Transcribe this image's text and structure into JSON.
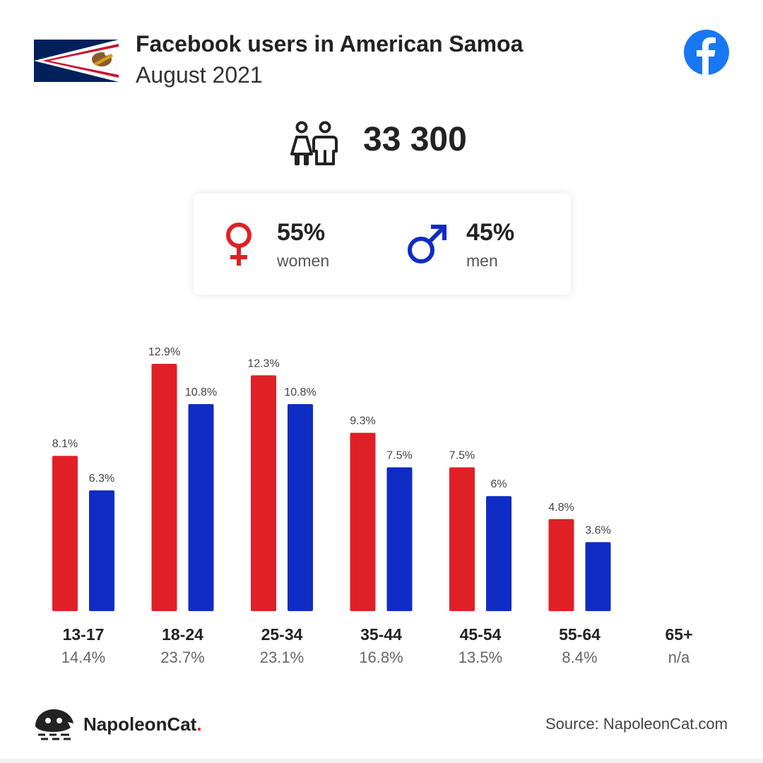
{
  "header": {
    "title": "Facebook users in American Samoa",
    "subtitle": "August 2021"
  },
  "icons": {
    "flag": "american-samoa-flag",
    "platform": "facebook-logo",
    "people": "people-icon",
    "female": "female-symbol-icon",
    "male": "male-symbol-icon",
    "brand": "napoleoncat-logo"
  },
  "colors": {
    "women": "#e02027",
    "men": "#0f2cc4",
    "facebook": "#1877f2"
  },
  "summary": {
    "total_users": "33 300",
    "women_pct": "55%",
    "women_label": "women",
    "men_pct": "45%",
    "men_label": "men"
  },
  "chart_data": {
    "type": "bar",
    "categories": [
      "13-17",
      "18-24",
      "25-34",
      "35-44",
      "45-54",
      "55-64",
      "65+"
    ],
    "category_totals": [
      "14.4%",
      "23.7%",
      "23.1%",
      "16.8%",
      "13.5%",
      "8.4%",
      "n/a"
    ],
    "series": [
      {
        "name": "women",
        "values": [
          8.1,
          12.9,
          12.3,
          9.3,
          7.5,
          4.8,
          null
        ],
        "labels": [
          "8.1%",
          "12.9%",
          "12.3%",
          "9.3%",
          "7.5%",
          "4.8%",
          ""
        ]
      },
      {
        "name": "men",
        "values": [
          6.3,
          10.8,
          10.8,
          7.5,
          6.0,
          3.6,
          null
        ],
        "labels": [
          "6.3%",
          "10.8%",
          "10.8%",
          "7.5%",
          "6%",
          "3.6%",
          ""
        ]
      }
    ],
    "ylim": [
      0,
      12.9
    ],
    "grid": false,
    "legend": "none"
  },
  "footer": {
    "brand_name": "NapoleonCat",
    "brand_dot": ".",
    "source": "Source: NapoleonCat.com"
  }
}
